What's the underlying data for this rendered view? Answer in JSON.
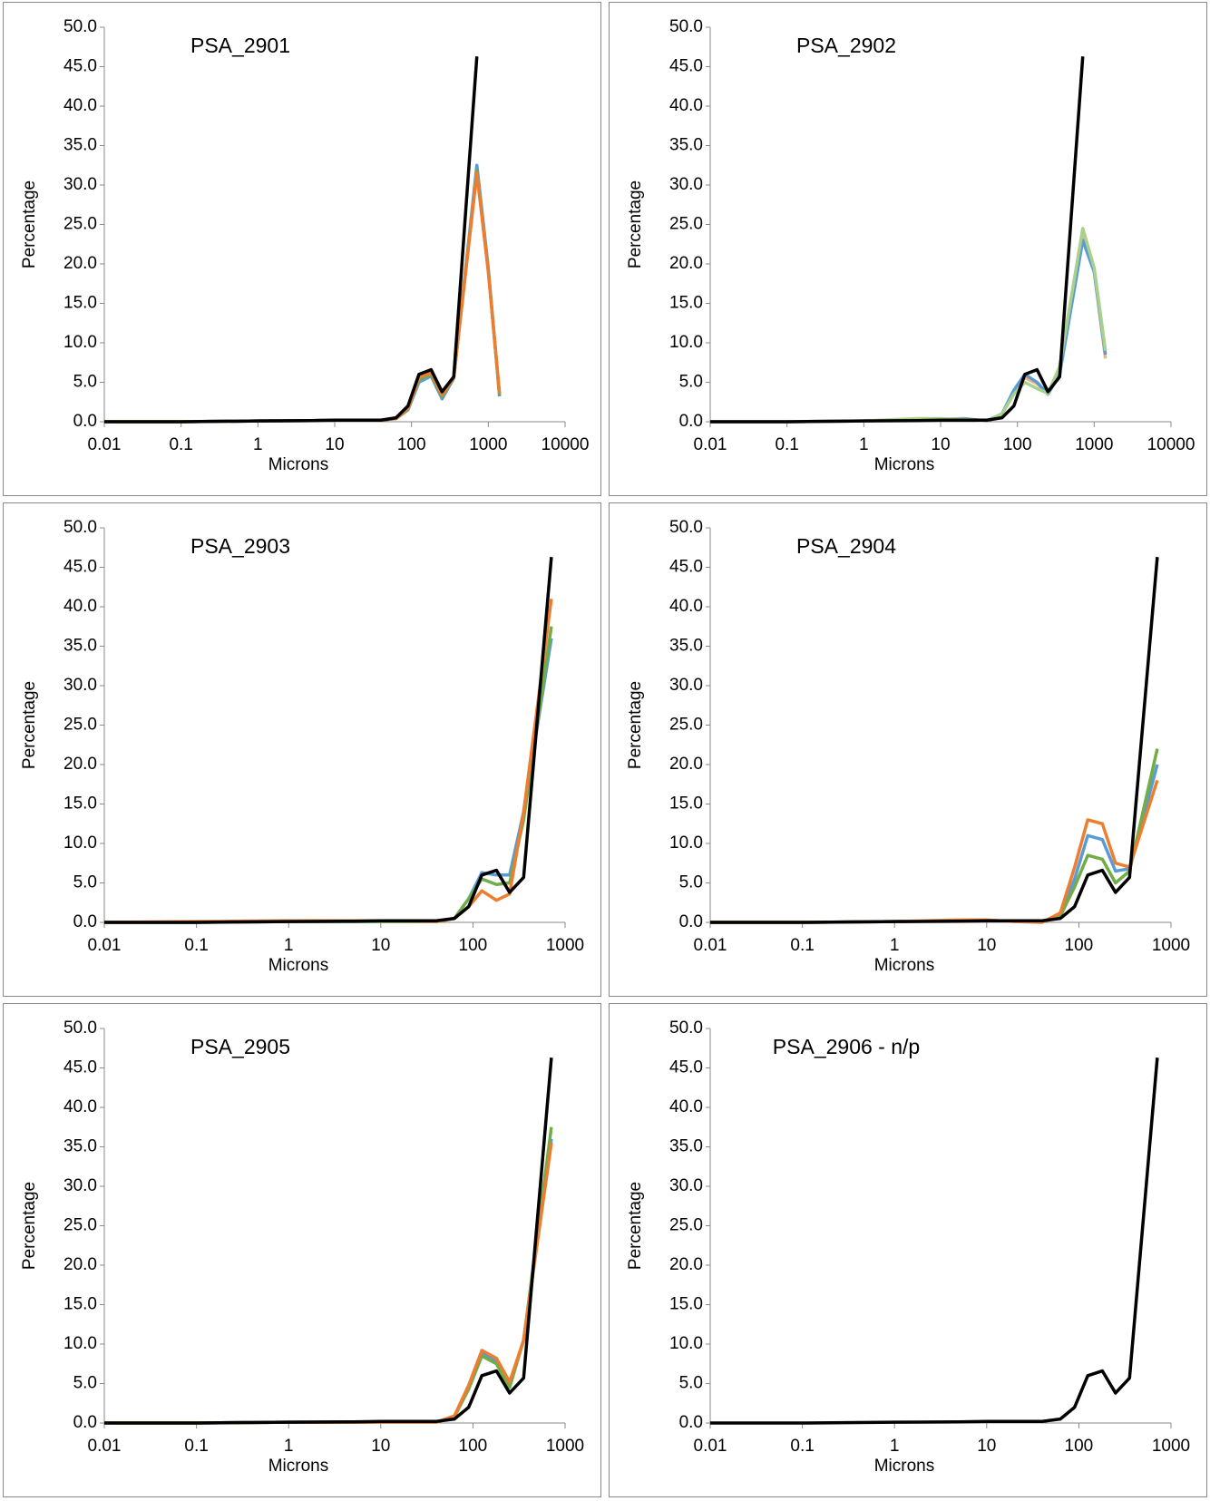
{
  "chart_data": [
    {
      "type": "line",
      "title": "PSA_2901",
      "x_label": "Microns",
      "y_label": "Percentage",
      "xscale": "log",
      "x": [
        0.01,
        0.1,
        1,
        5,
        10,
        20,
        40,
        63,
        90,
        125,
        180,
        250,
        355,
        710,
        1000,
        1400
      ],
      "series": [
        {
          "color": "#5b9bd5",
          "values": [
            0,
            0,
            0.1,
            0.15,
            0.2,
            0.2,
            0.2,
            0.4,
            1.5,
            5.0,
            5.8,
            2.9,
            5.5,
            32.5,
            19.5,
            3.2
          ]
        },
        {
          "color": "#70ad47",
          "values": [
            0,
            0,
            0.1,
            0.15,
            0.2,
            0.2,
            0.2,
            0.4,
            1.6,
            5.4,
            6.0,
            3.2,
            5.6,
            31.8,
            19.2,
            3.4
          ]
        },
        {
          "color": "#ed7d31",
          "values": [
            0,
            0,
            0.1,
            0.15,
            0.2,
            0.2,
            0.2,
            0.4,
            1.7,
            5.6,
            6.2,
            3.4,
            5.6,
            31.5,
            19.0,
            3.6
          ]
        },
        {
          "color": "#000000",
          "values": [
            0,
            0,
            0.1,
            0.15,
            0.2,
            0.2,
            0.2,
            0.5,
            2.0,
            6.0,
            6.6,
            3.8,
            5.7,
            46.3,
            null,
            null
          ]
        }
      ],
      "xlim": [
        0.01,
        10000
      ],
      "xticks": [
        0.01,
        0.1,
        1,
        10,
        100,
        1000,
        10000
      ],
      "ylim": [
        0,
        50
      ],
      "yticks": [
        {
          "value": 0,
          "label": "0.0"
        },
        {
          "value": 5,
          "label": "5.0"
        },
        {
          "value": 10,
          "label": "10.0"
        },
        {
          "value": 15,
          "label": "15.0"
        },
        {
          "value": 20,
          "label": "20.0"
        },
        {
          "value": 25,
          "label": "25.0"
        },
        {
          "value": 30,
          "label": "30.0"
        },
        {
          "value": 35,
          "label": "35.0"
        },
        {
          "value": 40,
          "label": "40.0"
        },
        {
          "value": 45,
          "label": "45.0"
        },
        {
          "value": 50,
          "label": "50.0"
        }
      ]
    },
    {
      "type": "line",
      "title": "PSA_2902",
      "x_label": "Microns",
      "y_label": "Percentage",
      "xscale": "log",
      "x": [
        0.01,
        0.1,
        1,
        5,
        10,
        20,
        40,
        63,
        90,
        125,
        180,
        250,
        355,
        710,
        1000,
        1400
      ],
      "series": [
        {
          "color": "#f4b183",
          "values": [
            0,
            0,
            0.1,
            0.3,
            0.3,
            0.3,
            0.1,
            1.0,
            3.8,
            5.6,
            4.8,
            3.6,
            6.5,
            24.0,
            19.0,
            8.0
          ]
        },
        {
          "color": "#5b9bd5",
          "values": [
            0,
            0,
            0.1,
            0.3,
            0.3,
            0.4,
            0.1,
            1.0,
            4.0,
            6.0,
            5.0,
            3.5,
            6.0,
            23.0,
            19.0,
            8.5
          ]
        },
        {
          "color": "#a9d18e",
          "values": [
            0,
            0,
            0.1,
            0.4,
            0.4,
            0.3,
            0.1,
            1.0,
            3.5,
            5.0,
            4.2,
            3.6,
            7.0,
            24.5,
            19.5,
            9.0
          ]
        },
        {
          "color": "#000000",
          "values": [
            0,
            0,
            0.1,
            0.15,
            0.2,
            0.2,
            0.2,
            0.5,
            2.0,
            6.0,
            6.6,
            3.8,
            5.7,
            46.3,
            null,
            null
          ]
        }
      ],
      "xlim": [
        0.01,
        10000
      ],
      "xticks": [
        0.01,
        0.1,
        1,
        10,
        100,
        1000,
        10000
      ],
      "ylim": [
        0,
        50
      ],
      "yticks": [
        {
          "value": 0,
          "label": "0.0"
        },
        {
          "value": 5,
          "label": "5.0"
        },
        {
          "value": 10,
          "label": "10.0"
        },
        {
          "value": 15,
          "label": "15.0"
        },
        {
          "value": 20,
          "label": "20.0"
        },
        {
          "value": 25,
          "label": "25.0"
        },
        {
          "value": 30,
          "label": "30.0"
        },
        {
          "value": 35,
          "label": "35.0"
        },
        {
          "value": 40,
          "label": "40.0"
        },
        {
          "value": 45,
          "label": "45.0"
        },
        {
          "value": 50,
          "label": "50.0"
        }
      ]
    },
    {
      "type": "line",
      "title": "PSA_2903",
      "x_label": "Microns",
      "y_label": "Percentage",
      "xscale": "log",
      "x": [
        0.01,
        0.1,
        1,
        5,
        10,
        20,
        40,
        63,
        90,
        125,
        180,
        250,
        355,
        710
      ],
      "series": [
        {
          "color": "#5b9bd5",
          "values": [
            0,
            0,
            0.1,
            0.1,
            0.1,
            0.1,
            0.1,
            0.5,
            3.0,
            6.3,
            6.0,
            6.0,
            14.0,
            36.0
          ]
        },
        {
          "color": "#70ad47",
          "values": [
            0,
            0,
            0.1,
            0.1,
            0.1,
            0.1,
            0.1,
            0.5,
            3.0,
            5.5,
            4.8,
            5.0,
            13.0,
            37.5
          ]
        },
        {
          "color": "#ed7d31",
          "values": [
            0,
            0.1,
            0.2,
            0.2,
            0.2,
            0.2,
            0.1,
            0.5,
            2.0,
            4.0,
            2.8,
            3.6,
            14.0,
            41.0
          ]
        },
        {
          "color": "#000000",
          "values": [
            0,
            0,
            0.1,
            0.15,
            0.2,
            0.2,
            0.2,
            0.5,
            2.0,
            6.0,
            6.6,
            3.8,
            5.7,
            46.3
          ]
        }
      ],
      "xlim": [
        0.01,
        1000
      ],
      "xticks": [
        0.01,
        0.1,
        1,
        10,
        100,
        1000
      ],
      "ylim": [
        0,
        50
      ],
      "yticks": [
        {
          "value": 0,
          "label": "0.0"
        },
        {
          "value": 5,
          "label": "5.0"
        },
        {
          "value": 10,
          "label": "10.0"
        },
        {
          "value": 15,
          "label": "15.0"
        },
        {
          "value": 20,
          "label": "20.0"
        },
        {
          "value": 25,
          "label": "25.0"
        },
        {
          "value": 30,
          "label": "30.0"
        },
        {
          "value": 35,
          "label": "35.0"
        },
        {
          "value": 40,
          "label": "40.0"
        },
        {
          "value": 45,
          "label": "45.0"
        },
        {
          "value": 50,
          "label": "50.0"
        }
      ]
    },
    {
      "type": "line",
      "title": "PSA_2904",
      "x_label": "Microns",
      "y_label": "Percentage",
      "xscale": "log",
      "x": [
        0.01,
        0.1,
        1,
        5,
        10,
        20,
        40,
        63,
        90,
        125,
        180,
        250,
        355,
        710
      ],
      "series": [
        {
          "color": "#5b9bd5",
          "values": [
            0,
            0,
            0.1,
            0.2,
            0.2,
            0.2,
            0.1,
            1.0,
            5.5,
            11.0,
            10.5,
            6.5,
            6.8,
            20.0
          ]
        },
        {
          "color": "#70ad47",
          "values": [
            0,
            0,
            0.1,
            0.2,
            0.2,
            0.2,
            0.1,
            0.8,
            4.5,
            8.5,
            8.0,
            5.0,
            6.5,
            22.0
          ]
        },
        {
          "color": "#ed7d31",
          "values": [
            0,
            0,
            0.1,
            0.3,
            0.3,
            0.1,
            0,
            1.2,
            7.0,
            13.0,
            12.5,
            7.5,
            7.0,
            18.0
          ]
        },
        {
          "color": "#000000",
          "values": [
            0,
            0,
            0.1,
            0.15,
            0.2,
            0.2,
            0.2,
            0.5,
            2.0,
            6.0,
            6.6,
            3.8,
            5.7,
            46.3
          ]
        }
      ],
      "xlim": [
        0.01,
        1000
      ],
      "xticks": [
        0.01,
        0.1,
        1,
        10,
        100,
        1000
      ],
      "ylim": [
        0,
        50
      ],
      "yticks": [
        {
          "value": 0,
          "label": "0.0"
        },
        {
          "value": 5,
          "label": "5.0"
        },
        {
          "value": 10,
          "label": "10.0"
        },
        {
          "value": 15,
          "label": "15.0"
        },
        {
          "value": 20,
          "label": "20.0"
        },
        {
          "value": 25,
          "label": "25.0"
        },
        {
          "value": 30,
          "label": "30.0"
        },
        {
          "value": 35,
          "label": "35.0"
        },
        {
          "value": 40,
          "label": "40.0"
        },
        {
          "value": 45,
          "label": "45.0"
        },
        {
          "value": 50,
          "label": "50.0"
        }
      ]
    },
    {
      "type": "line",
      "title": "PSA_2905",
      "x_label": "Microns",
      "y_label": "Percentage",
      "xscale": "log",
      "x": [
        0.01,
        0.1,
        1,
        5,
        10,
        20,
        40,
        63,
        90,
        125,
        180,
        250,
        355,
        710
      ],
      "series": [
        {
          "color": "#5b9bd5",
          "values": [
            0,
            0,
            0.1,
            0.1,
            0.1,
            0.1,
            0.1,
            0.8,
            4.5,
            8.8,
            7.8,
            4.8,
            10.5,
            36.0
          ]
        },
        {
          "color": "#70ad47",
          "values": [
            0,
            0,
            0.1,
            0.1,
            0.1,
            0.1,
            0.1,
            0.8,
            4.3,
            8.5,
            7.5,
            4.5,
            10.5,
            37.5
          ]
        },
        {
          "color": "#ed7d31",
          "values": [
            0,
            0,
            0.1,
            0.1,
            0.1,
            0.1,
            0.1,
            0.9,
            4.8,
            9.2,
            8.2,
            5.2,
            10.5,
            35.5
          ]
        },
        {
          "color": "#000000",
          "values": [
            0,
            0,
            0.1,
            0.15,
            0.2,
            0.2,
            0.2,
            0.5,
            2.0,
            6.0,
            6.6,
            3.8,
            5.7,
            46.3
          ]
        }
      ],
      "xlim": [
        0.01,
        1000
      ],
      "xticks": [
        0.01,
        0.1,
        1,
        10,
        100,
        1000
      ],
      "ylim": [
        0,
        50
      ],
      "yticks": [
        {
          "value": 0,
          "label": "0.0"
        },
        {
          "value": 5,
          "label": "5.0"
        },
        {
          "value": 10,
          "label": "10.0"
        },
        {
          "value": 15,
          "label": "15.0"
        },
        {
          "value": 20,
          "label": "20.0"
        },
        {
          "value": 25,
          "label": "25.0"
        },
        {
          "value": 30,
          "label": "30.0"
        },
        {
          "value": 35,
          "label": "35.0"
        },
        {
          "value": 40,
          "label": "40.0"
        },
        {
          "value": 45,
          "label": "45.0"
        },
        {
          "value": 50,
          "label": "50.0"
        }
      ]
    },
    {
      "type": "line",
      "title": "PSA_2906 - n/p",
      "x_label": "Microns",
      "y_label": "Percentage",
      "xscale": "log",
      "x": [
        0.01,
        0.1,
        1,
        5,
        10,
        20,
        40,
        63,
        90,
        125,
        180,
        250,
        355,
        710
      ],
      "series": [
        {
          "color": "#000000",
          "values": [
            0,
            0,
            0.1,
            0.15,
            0.2,
            0.2,
            0.2,
            0.5,
            2.0,
            6.0,
            6.6,
            3.8,
            5.7,
            46.3
          ]
        }
      ],
      "xlim": [
        0.01,
        1000
      ],
      "xticks": [
        0.01,
        0.1,
        1,
        10,
        100,
        1000
      ],
      "ylim": [
        0,
        50
      ],
      "yticks": [
        {
          "value": 0,
          "label": "0.0"
        },
        {
          "value": 5,
          "label": "5.0"
        },
        {
          "value": 10,
          "label": "10.0"
        },
        {
          "value": 15,
          "label": "15.0"
        },
        {
          "value": 20,
          "label": "20.0"
        },
        {
          "value": 25,
          "label": "25.0"
        },
        {
          "value": 30,
          "label": "30.0"
        },
        {
          "value": 35,
          "label": "35.0"
        },
        {
          "value": 40,
          "label": "40.0"
        },
        {
          "value": 45,
          "label": "45.0"
        },
        {
          "value": 50,
          "label": "50.0"
        }
      ]
    }
  ]
}
